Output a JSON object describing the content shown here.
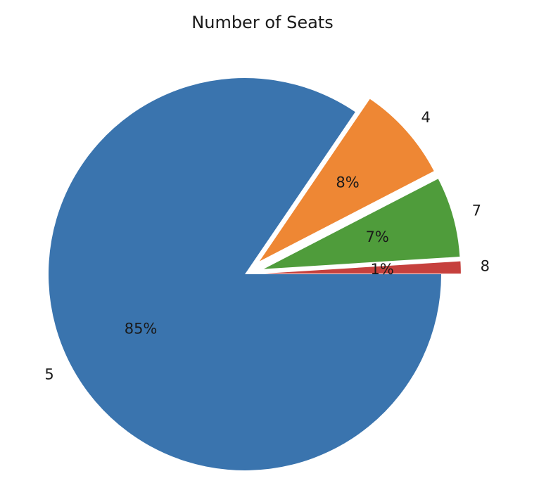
{
  "chart_data": {
    "type": "pie",
    "title": "Number of Seats",
    "slices": [
      {
        "label": "5",
        "percent_label": "85%",
        "value": 84.5,
        "color": "#3a74ae",
        "explode": 0.0
      },
      {
        "label": "4",
        "percent_label": "8%",
        "value": 7.9,
        "color": "#ee8734",
        "explode": 0.1
      },
      {
        "label": "7",
        "percent_label": "7%",
        "value": 6.6,
        "color": "#4f9c3b",
        "explode": 0.1
      },
      {
        "label": "8",
        "percent_label": "1%",
        "value": 1.0,
        "color": "#c6403d",
        "explode": 0.1
      }
    ],
    "start_angle": 0,
    "direction": "clockwise"
  }
}
